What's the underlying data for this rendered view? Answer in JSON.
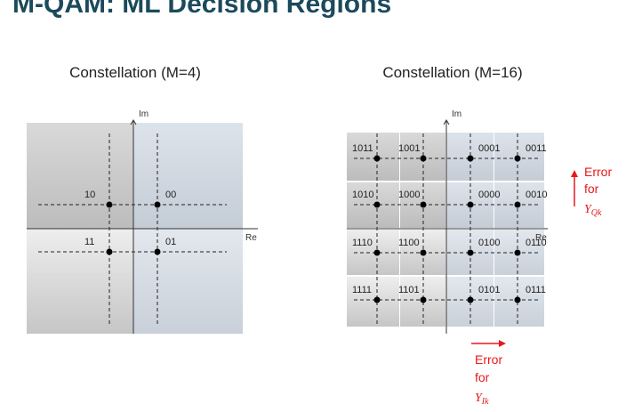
{
  "title": "M-QAM: ML Decision Regions",
  "panels": [
    {
      "title": "Constellation (M=4)",
      "x_axis": "Re",
      "y_axis": "Im",
      "points": [
        [
          "10",
          "00"
        ],
        [
          "11",
          "01"
        ]
      ]
    },
    {
      "title": "Constellation (M=16)",
      "x_axis": "Re",
      "y_axis": "Im",
      "points": [
        [
          "1011",
          "1001",
          "0001",
          "0011"
        ],
        [
          "1010",
          "1000",
          "0000",
          "0010"
        ],
        [
          "1110",
          "1100",
          "0100",
          "0110"
        ],
        [
          "1111",
          "1101",
          "0101",
          "0111"
        ]
      ]
    }
  ],
  "annotations": [
    {
      "line1": "Error",
      "line2": "for",
      "symbol": "Y",
      "subscript": "Qk"
    },
    {
      "line1": "Error",
      "line2": "for",
      "symbol": "Y",
      "subscript": "Ik"
    }
  ]
}
